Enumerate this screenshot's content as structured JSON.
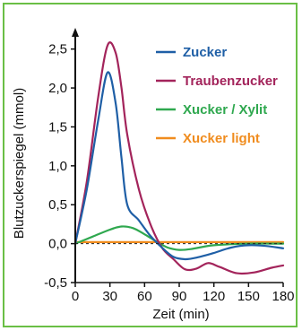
{
  "chart_data": {
    "type": "line",
    "xlabel": "Zeit (min)",
    "ylabel": "Blutzuckerspiegel (mmol)",
    "xlim": [
      0,
      180
    ],
    "ylim": [
      -0.5,
      2.6
    ],
    "x_ticks": [
      0,
      30,
      60,
      90,
      120,
      150,
      180
    ],
    "x_tick_labels": [
      "0",
      "30",
      "60",
      "90",
      "120",
      "150",
      "180"
    ],
    "y_ticks": [
      2.5,
      2.0,
      1.5,
      1.0,
      0.5,
      0.0,
      -0.5
    ],
    "y_tick_labels": [
      "2,5",
      "2,0",
      "1,5",
      "1,0",
      "0,5",
      "0,0",
      "-0,5"
    ],
    "baseline_style": "dashed",
    "grid": false,
    "legend_position": "top-right",
    "series": [
      {
        "name": "Zucker",
        "color": "#1f5fa6",
        "x": [
          0,
          10,
          20,
          28,
          35,
          40,
          45,
          55,
          65,
          75,
          85,
          95,
          105,
          120,
          135,
          150,
          165,
          180
        ],
        "y": [
          0.0,
          0.7,
          1.6,
          2.2,
          1.8,
          1.1,
          0.5,
          0.3,
          0.1,
          -0.05,
          -0.17,
          -0.2,
          -0.18,
          -0.12,
          -0.05,
          -0.02,
          -0.03,
          -0.06
        ]
      },
      {
        "name": "Traubenzucker",
        "color": "#a3245b",
        "x": [
          0,
          10,
          20,
          28,
          35,
          40,
          45,
          55,
          65,
          75,
          85,
          95,
          105,
          115,
          125,
          140,
          155,
          170,
          180
        ],
        "y": [
          0.0,
          0.8,
          1.9,
          2.55,
          2.45,
          2.0,
          1.4,
          0.7,
          0.25,
          -0.05,
          -0.2,
          -0.33,
          -0.32,
          -0.25,
          -0.3,
          -0.38,
          -0.37,
          -0.31,
          -0.28
        ]
      },
      {
        "name": "Xucker / Xylit",
        "color": "#2fa84f",
        "x": [
          0,
          15,
          30,
          40,
          50,
          60,
          70,
          80,
          90,
          100,
          120,
          150,
          170,
          180
        ],
        "y": [
          0.0,
          0.09,
          0.18,
          0.22,
          0.2,
          0.12,
          0.03,
          -0.05,
          -0.08,
          -0.07,
          -0.02,
          0.0,
          0.0,
          0.0
        ]
      },
      {
        "name": "Xucker light",
        "color": "#f08c1e",
        "x": [
          0,
          180
        ],
        "y": [
          0.02,
          0.02
        ]
      }
    ]
  }
}
